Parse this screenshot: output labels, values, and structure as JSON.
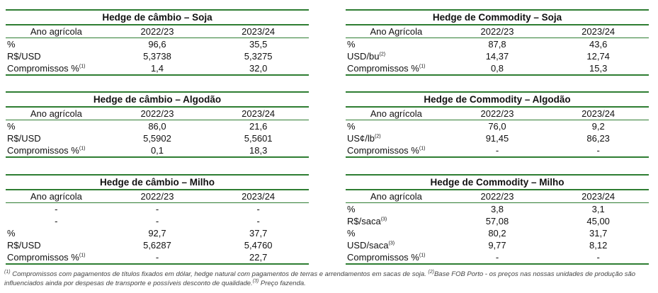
{
  "tables": {
    "t1": {
      "title": "Hedge de câmbio – Soja",
      "header": [
        "Ano agrícola",
        "2022/23",
        "2023/24"
      ],
      "rows": [
        {
          "label": "%",
          "sup": "",
          "v1": "96,6",
          "v2": "35,5"
        },
        {
          "label": "R$/USD",
          "sup": "",
          "v1": "5,3738",
          "v2": "5,3275"
        },
        {
          "label": "Compromissos %",
          "sup": "(1)",
          "v1": "1,4",
          "v2": "32,0"
        }
      ]
    },
    "t2": {
      "title": "Hedge de Commodity – Soja",
      "header": [
        "Ano Agrícola",
        "2022/23",
        "2023/24"
      ],
      "rows": [
        {
          "label": "%",
          "sup": "",
          "v1": "87,8",
          "v2": "43,6"
        },
        {
          "label": "USD/bu",
          "sup": "(2)",
          "v1": "14,37",
          "v2": "12,74"
        },
        {
          "label": "Compromissos %",
          "sup": "(1)",
          "v1": "0,8",
          "v2": "15,3"
        }
      ]
    },
    "t3": {
      "title": "Hedge de câmbio – Algodão",
      "header": [
        "Ano agrícola",
        "2022/23",
        "2023/24"
      ],
      "rows": [
        {
          "label": "%",
          "sup": "",
          "v1": "86,0",
          "v2": "21,6"
        },
        {
          "label": "R$/USD",
          "sup": "",
          "v1": "5,5902",
          "v2": "5,5601"
        },
        {
          "label": "Compromissos %",
          "sup": "(1)",
          "v1": "0,1",
          "v2": "18,3"
        }
      ]
    },
    "t4": {
      "title": "Hedge de Commodity – Algodão",
      "header": [
        "Ano agrícola",
        "2022/23",
        "2023/24"
      ],
      "rows": [
        {
          "label": "%",
          "sup": "",
          "v1": "76,0",
          "v2": "9,2"
        },
        {
          "label": "US¢/lb",
          "sup": "(2)",
          "v1": "91,45",
          "v2": "86,23"
        },
        {
          "label": "Compromissos %",
          "sup": "(1)",
          "v1": "-",
          "v2": "-"
        }
      ]
    },
    "t5": {
      "title": "Hedge de câmbio – Milho",
      "header": [
        "Ano agrícola",
        "2022/23",
        "2023/24"
      ],
      "rows": [
        {
          "label": "-",
          "sup": "",
          "v1": "-",
          "v2": "-",
          "center": true
        },
        {
          "label": "-",
          "sup": "",
          "v1": "-",
          "v2": "-",
          "center": true
        },
        {
          "label": "%",
          "sup": "",
          "v1": "92,7",
          "v2": "37,7"
        },
        {
          "label": "R$/USD",
          "sup": "",
          "v1": "5,6287",
          "v2": "5,4760"
        },
        {
          "label": "Compromissos %",
          "sup": "(1)",
          "v1": "-",
          "v2": "22,7"
        }
      ]
    },
    "t6": {
      "title": "Hedge de Commodity – Milho",
      "header": [
        "Ano agrícola",
        "2022/23",
        "2023/24"
      ],
      "rows": [
        {
          "label": "%",
          "sup": "",
          "v1": "3,8",
          "v2": "3,1"
        },
        {
          "label": "R$/saca",
          "sup": "(3)",
          "v1": "57,08",
          "v2": "45,00"
        },
        {
          "label": "%",
          "sup": "",
          "v1": "80,2",
          "v2": "31,7"
        },
        {
          "label": "USD/saca",
          "sup": "(3)",
          "v1": "9,77",
          "v2": "8,12"
        },
        {
          "label": "Compromissos %",
          "sup": "(1)",
          "v1": "-",
          "v2": "-"
        }
      ]
    }
  },
  "footnote": {
    "s1": "(1)",
    "t1": " Compromissos com pagamentos de títulos fixados em dólar, hedge natural com pagamentos de terras e arrendamentos em sacas de soja. ",
    "s2": "(2)",
    "t2": "Base FOB Porto - os preços nas nossas unidades de produção são influenciados ainda por despesas de transporte e possíveis desconto de qualidade.",
    "s3": "(3)",
    "t3": " Preço fazenda."
  }
}
